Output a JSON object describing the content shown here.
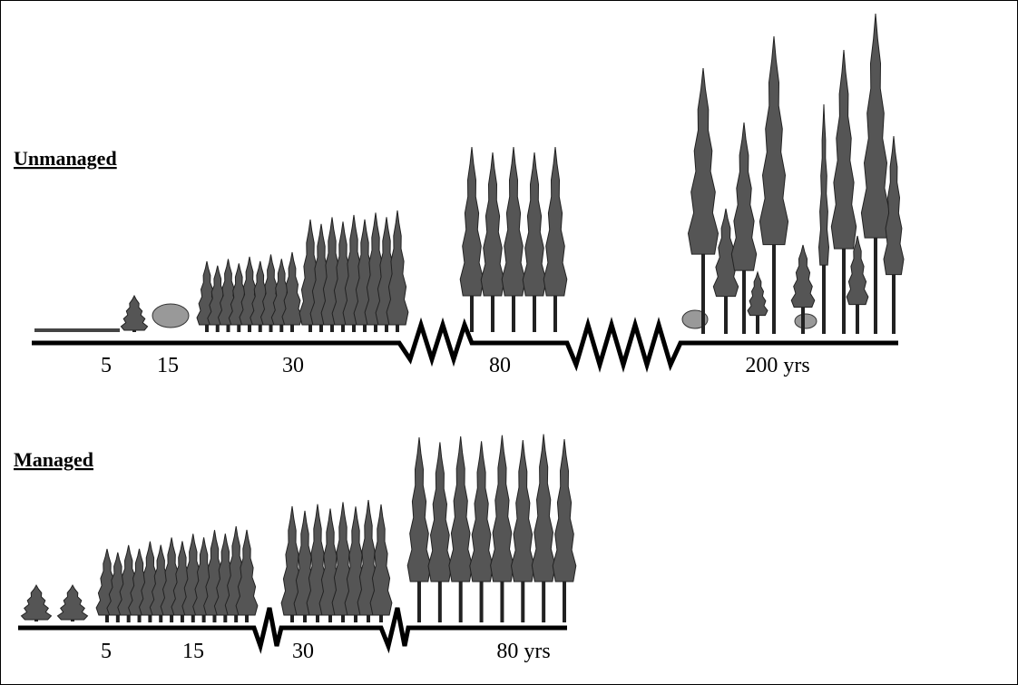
{
  "sections": [
    {
      "title": "Unmanaged",
      "labels": [
        "5",
        "15",
        "30",
        "80",
        "200 yrs"
      ]
    },
    {
      "title": "Managed",
      "labels": [
        "5",
        "15",
        "30",
        "80 yrs"
      ]
    }
  ]
}
